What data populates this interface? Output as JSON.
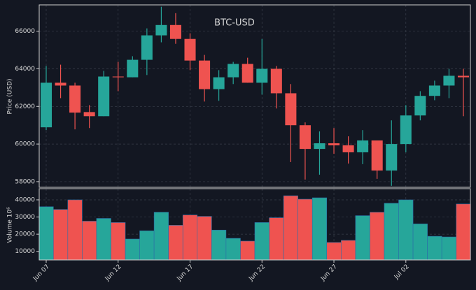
{
  "chart_data": {
    "type": "candlestick",
    "title": "BTC-USD",
    "y_label": "Price (USD)",
    "y2_label": "Volume  10⁶",
    "up_color": "#26a69a",
    "down_color": "#ef5350",
    "grid": true,
    "categories": [
      "Jun 07",
      null,
      null,
      null,
      null,
      "Jun 12",
      null,
      null,
      null,
      null,
      "Jun 17",
      null,
      null,
      null,
      null,
      "Jun 22",
      null,
      null,
      null,
      null,
      "Jun 27",
      null,
      null,
      null,
      null,
      "Jul 02",
      null,
      null,
      null,
      null
    ],
    "open": [
      60890,
      63260,
      63110,
      61700,
      61480,
      63590,
      63550,
      64480,
      65780,
      66330,
      65590,
      64440,
      62920,
      63550,
      64260,
      63260,
      64000,
      62700,
      61000,
      59740,
      60040,
      59930,
      59560,
      60190,
      58590,
      60000,
      61520,
      62560,
      63110,
      63630
    ],
    "high": [
      64150,
      64220,
      63260,
      62070,
      63890,
      64370,
      64670,
      66150,
      67300,
      66960,
      65890,
      64740,
      63930,
      64370,
      64590,
      65590,
      64150,
      63190,
      61150,
      60670,
      60850,
      60410,
      60740,
      60190,
      61260,
      62070,
      62810,
      63370,
      64000,
      64000
    ],
    "low": [
      60740,
      62440,
      60780,
      60850,
      61480,
      62810,
      63550,
      63670,
      65410,
      65330,
      63930,
      62260,
      62300,
      63190,
      63260,
      62630,
      61890,
      59040,
      58110,
      58370,
      59480,
      58960,
      58930,
      58150,
      57780,
      59560,
      61260,
      62330,
      62440,
      61480
    ],
    "close": [
      63260,
      63110,
      61670,
      61480,
      63590,
      63550,
      64480,
      65780,
      66330,
      65590,
      64440,
      62920,
      63550,
      64260,
      63260,
      64000,
      62700,
      61000,
      59740,
      60040,
      59930,
      59560,
      60190,
      58590,
      60000,
      61520,
      62560,
      63110,
      63630,
      63550
    ],
    "volume": [
      36000,
      34400,
      40000,
      27600,
      29200,
      26800,
      17200,
      22000,
      32800,
      25200,
      31200,
      30400,
      22400,
      17600,
      16000,
      26800,
      29600,
      42400,
      40400,
      41200,
      15200,
      16400,
      30800,
      32800,
      38000,
      40000,
      26000,
      18800,
      18400,
      37600
    ],
    "ylim": [
      57700,
      67400
    ],
    "yticks": [
      58000,
      60000,
      62000,
      64000,
      66000
    ],
    "y2lim": [
      5000,
      46500
    ],
    "y2ticks": [
      10000,
      20000,
      30000,
      40000
    ]
  }
}
